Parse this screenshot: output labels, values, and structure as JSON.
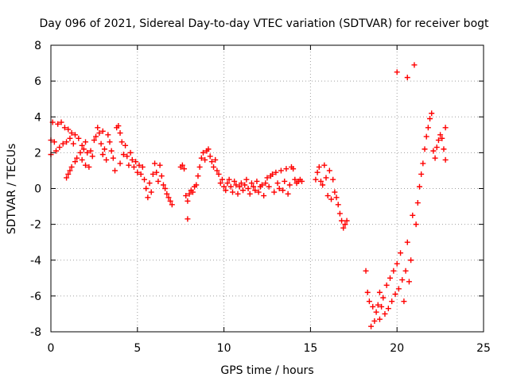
{
  "chart_data": {
    "type": "scatter",
    "title": "Day 096 of 2021, Sidereal Day-to-day VTEC variation (SDTVAR) for receiver bogt",
    "xlabel": "GPS time / hours",
    "ylabel": "SDTVAR / TECUs",
    "xlim": [
      0,
      25
    ],
    "ylim": [
      -8,
      8
    ],
    "x_ticks": [
      0,
      5,
      10,
      15,
      20,
      25
    ],
    "y_ticks": [
      -8,
      -6,
      -4,
      -2,
      0,
      2,
      4,
      6,
      8
    ],
    "grid": true,
    "legend": "none",
    "marker": "+",
    "colors": {
      "series": "#ff0000",
      "grid": "#a0a0a0",
      "axis": "#000000"
    },
    "series": [
      {
        "name": "SDTVAR",
        "points": [
          [
            0.0,
            2.7
          ],
          [
            0.0,
            1.9
          ],
          [
            0.1,
            3.7
          ],
          [
            0.2,
            2.6
          ],
          [
            0.3,
            2.1
          ],
          [
            0.4,
            3.6
          ],
          [
            0.5,
            2.3
          ],
          [
            0.6,
            3.7
          ],
          [
            0.7,
            2.5
          ],
          [
            0.8,
            3.4
          ],
          [
            0.9,
            2.6
          ],
          [
            0.9,
            0.6
          ],
          [
            1.0,
            3.3
          ],
          [
            1.0,
            0.8
          ],
          [
            1.1,
            2.8
          ],
          [
            1.1,
            1.0
          ],
          [
            1.2,
            3.1
          ],
          [
            1.2,
            1.2
          ],
          [
            1.3,
            2.5
          ],
          [
            1.4,
            1.5
          ],
          [
            1.4,
            3.0
          ],
          [
            1.5,
            1.7
          ],
          [
            1.6,
            2.8
          ],
          [
            1.7,
            2.0
          ],
          [
            1.8,
            2.4
          ],
          [
            1.8,
            1.6
          ],
          [
            1.9,
            2.2
          ],
          [
            2.0,
            1.3
          ],
          [
            2.0,
            2.6
          ],
          [
            2.1,
            2.0
          ],
          [
            2.2,
            1.2
          ],
          [
            2.3,
            2.1
          ],
          [
            2.4,
            1.8
          ],
          [
            2.5,
            2.7
          ],
          [
            2.6,
            2.9
          ],
          [
            2.7,
            3.4
          ],
          [
            2.8,
            3.1
          ],
          [
            2.9,
            2.5
          ],
          [
            3.0,
            1.9
          ],
          [
            3.0,
            3.2
          ],
          [
            3.1,
            2.2
          ],
          [
            3.2,
            1.6
          ],
          [
            3.3,
            3.0
          ],
          [
            3.4,
            2.6
          ],
          [
            3.5,
            2.1
          ],
          [
            3.6,
            1.7
          ],
          [
            3.7,
            1.0
          ],
          [
            3.8,
            3.4
          ],
          [
            3.9,
            3.5
          ],
          [
            4.0,
            3.1
          ],
          [
            4.0,
            1.4
          ],
          [
            4.1,
            2.6
          ],
          [
            4.2,
            1.9
          ],
          [
            4.3,
            2.4
          ],
          [
            4.4,
            1.8
          ],
          [
            4.5,
            1.3
          ],
          [
            4.6,
            2.0
          ],
          [
            4.7,
            1.6
          ],
          [
            4.8,
            1.2
          ],
          [
            4.9,
            1.5
          ],
          [
            5.0,
            0.9
          ],
          [
            5.1,
            1.3
          ],
          [
            5.2,
            0.8
          ],
          [
            5.3,
            1.2
          ],
          [
            5.4,
            0.5
          ],
          [
            5.5,
            0.0
          ],
          [
            5.6,
            -0.5
          ],
          [
            5.7,
            0.3
          ],
          [
            5.8,
            -0.2
          ],
          [
            5.9,
            0.8
          ],
          [
            6.0,
            1.4
          ],
          [
            6.1,
            0.9
          ],
          [
            6.2,
            0.4
          ],
          [
            6.3,
            1.3
          ],
          [
            6.4,
            0.7
          ],
          [
            6.5,
            0.2
          ],
          [
            6.6,
            0.0
          ],
          [
            6.7,
            -0.3
          ],
          [
            6.8,
            -0.5
          ],
          [
            6.9,
            -0.7
          ],
          [
            7.0,
            -0.9
          ],
          [
            7.5,
            1.2
          ],
          [
            7.6,
            1.3
          ],
          [
            7.7,
            1.1
          ],
          [
            7.8,
            -0.4
          ],
          [
            7.9,
            -1.7
          ],
          [
            7.9,
            -0.7
          ],
          [
            8.0,
            -0.3
          ],
          [
            8.1,
            -0.1
          ],
          [
            8.2,
            -0.2
          ],
          [
            8.3,
            0.1
          ],
          [
            8.4,
            0.2
          ],
          [
            8.5,
            0.7
          ],
          [
            8.6,
            1.2
          ],
          [
            8.7,
            1.7
          ],
          [
            8.8,
            2.0
          ],
          [
            8.9,
            1.6
          ],
          [
            9.0,
            2.1
          ],
          [
            9.1,
            2.2
          ],
          [
            9.2,
            1.8
          ],
          [
            9.3,
            1.5
          ],
          [
            9.4,
            1.2
          ],
          [
            9.5,
            1.6
          ],
          [
            9.6,
            1.0
          ],
          [
            9.7,
            0.8
          ],
          [
            9.8,
            0.3
          ],
          [
            9.9,
            0.5
          ],
          [
            10.0,
            0.1
          ],
          [
            10.1,
            -0.1
          ],
          [
            10.2,
            0.3
          ],
          [
            10.3,
            0.5
          ],
          [
            10.4,
            0.1
          ],
          [
            10.5,
            -0.2
          ],
          [
            10.6,
            0.4
          ],
          [
            10.7,
            0.2
          ],
          [
            10.8,
            -0.3
          ],
          [
            10.9,
            0.1
          ],
          [
            11.0,
            0.3
          ],
          [
            11.1,
            -0.1
          ],
          [
            11.2,
            0.2
          ],
          [
            11.3,
            0.5
          ],
          [
            11.4,
            0.0
          ],
          [
            11.5,
            -0.3
          ],
          [
            11.6,
            0.3
          ],
          [
            11.7,
            0.1
          ],
          [
            11.8,
            -0.1
          ],
          [
            11.9,
            0.4
          ],
          [
            12.0,
            -0.2
          ],
          [
            12.1,
            0.1
          ],
          [
            12.2,
            0.2
          ],
          [
            12.3,
            -0.4
          ],
          [
            12.4,
            0.3
          ],
          [
            12.5,
            0.6
          ],
          [
            12.6,
            0.1
          ],
          [
            12.7,
            0.7
          ],
          [
            12.8,
            0.8
          ],
          [
            12.9,
            -0.2
          ],
          [
            13.0,
            0.9
          ],
          [
            13.1,
            0.3
          ],
          [
            13.2,
            0.0
          ],
          [
            13.3,
            1.0
          ],
          [
            13.4,
            -0.1
          ],
          [
            13.5,
            0.4
          ],
          [
            13.6,
            1.1
          ],
          [
            13.7,
            -0.3
          ],
          [
            13.8,
            0.2
          ],
          [
            13.9,
            1.2
          ],
          [
            14.0,
            1.1
          ],
          [
            14.1,
            0.5
          ],
          [
            14.2,
            0.3
          ],
          [
            14.3,
            0.4
          ],
          [
            14.4,
            0.5
          ],
          [
            14.5,
            0.4
          ],
          [
            15.3,
            0.5
          ],
          [
            15.4,
            0.9
          ],
          [
            15.5,
            1.2
          ],
          [
            15.6,
            0.4
          ],
          [
            15.7,
            0.2
          ],
          [
            15.8,
            1.3
          ],
          [
            15.9,
            0.6
          ],
          [
            16.0,
            -0.4
          ],
          [
            16.1,
            1.0
          ],
          [
            16.2,
            -0.6
          ],
          [
            16.3,
            0.5
          ],
          [
            16.4,
            -0.2
          ],
          [
            16.5,
            -0.5
          ],
          [
            16.6,
            -0.9
          ],
          [
            16.7,
            -1.4
          ],
          [
            16.8,
            -1.8
          ],
          [
            16.9,
            -2.2
          ],
          [
            17.0,
            -2.0
          ],
          [
            17.1,
            -1.8
          ],
          [
            18.2,
            -4.6
          ],
          [
            18.3,
            -5.8
          ],
          [
            18.4,
            -6.3
          ],
          [
            18.5,
            -7.7
          ],
          [
            18.6,
            -6.6
          ],
          [
            18.7,
            -7.4
          ],
          [
            18.8,
            -6.9
          ],
          [
            18.9,
            -6.5
          ],
          [
            19.0,
            -7.3
          ],
          [
            19.0,
            -5.8
          ],
          [
            19.1,
            -6.6
          ],
          [
            19.2,
            -6.1
          ],
          [
            19.3,
            -7.0
          ],
          [
            19.4,
            -5.4
          ],
          [
            19.5,
            -6.7
          ],
          [
            19.6,
            -5.0
          ],
          [
            19.7,
            -6.3
          ],
          [
            19.8,
            -4.6
          ],
          [
            19.9,
            -5.9
          ],
          [
            20.0,
            -4.2
          ],
          [
            20.0,
            6.5
          ],
          [
            20.1,
            -5.6
          ],
          [
            20.2,
            -3.6
          ],
          [
            20.3,
            -5.1
          ],
          [
            20.4,
            -6.3
          ],
          [
            20.5,
            -4.6
          ],
          [
            20.6,
            -3.0
          ],
          [
            20.6,
            6.2
          ],
          [
            20.7,
            -5.2
          ],
          [
            20.8,
            -4.0
          ],
          [
            20.9,
            -1.5
          ],
          [
            21.0,
            6.9
          ],
          [
            21.1,
            -2.0
          ],
          [
            21.2,
            -0.8
          ],
          [
            21.3,
            0.1
          ],
          [
            21.4,
            0.8
          ],
          [
            21.5,
            1.4
          ],
          [
            21.6,
            2.2
          ],
          [
            21.7,
            2.9
          ],
          [
            21.8,
            3.4
          ],
          [
            21.9,
            3.9
          ],
          [
            22.0,
            4.2
          ],
          [
            22.1,
            2.1
          ],
          [
            22.2,
            1.7
          ],
          [
            22.3,
            2.3
          ],
          [
            22.4,
            2.7
          ],
          [
            22.5,
            3.0
          ],
          [
            22.6,
            2.8
          ],
          [
            22.7,
            2.2
          ],
          [
            22.8,
            1.6
          ],
          [
            22.8,
            3.4
          ]
        ]
      }
    ]
  }
}
